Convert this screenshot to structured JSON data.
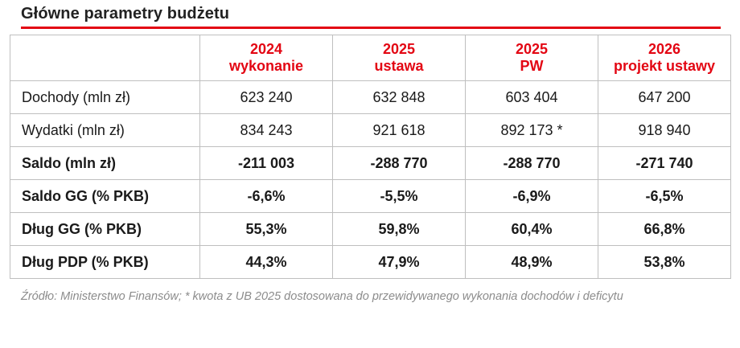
{
  "title": "Główne parametry budżetu",
  "table": {
    "headers": [
      {
        "year": "2024",
        "sub": "wykonanie"
      },
      {
        "year": "2025",
        "sub": "ustawa"
      },
      {
        "year": "2025",
        "sub": "PW"
      },
      {
        "year": "2026",
        "sub": "projekt ustawy"
      }
    ],
    "rows": [
      {
        "label": "Dochody (mln zł)",
        "values": [
          "623 240",
          "632 848",
          "603 404",
          "647 200"
        ]
      },
      {
        "label": "Wydatki (mln zł)",
        "values": [
          "834 243",
          "921 618",
          "892 173 *",
          "918 940"
        ]
      },
      {
        "label": "Saldo (mln zł)",
        "values": [
          "-211 003",
          "-288 770",
          "-288 770",
          "-271 740"
        ]
      },
      {
        "label": "Saldo GG (% PKB)",
        "values": [
          "-6,6%",
          "-5,5%",
          "-6,9%",
          "-6,5%"
        ]
      },
      {
        "label": "Dług GG (% PKB)",
        "values": [
          "55,3%",
          "59,8%",
          "60,4%",
          "66,8%"
        ]
      },
      {
        "label": "Dług PDP (% PKB)",
        "values": [
          "44,3%",
          "47,9%",
          "48,9%",
          "53,8%"
        ]
      }
    ]
  },
  "source": "Źródło: Ministerstwo Finansów; * kwota z UB 2025 dostosowana do przewidywanego wykonania dochodów i deficytu",
  "colors": {
    "accent": "#e30613",
    "border": "#bfbfbf",
    "source_text": "#8c8c8c"
  }
}
